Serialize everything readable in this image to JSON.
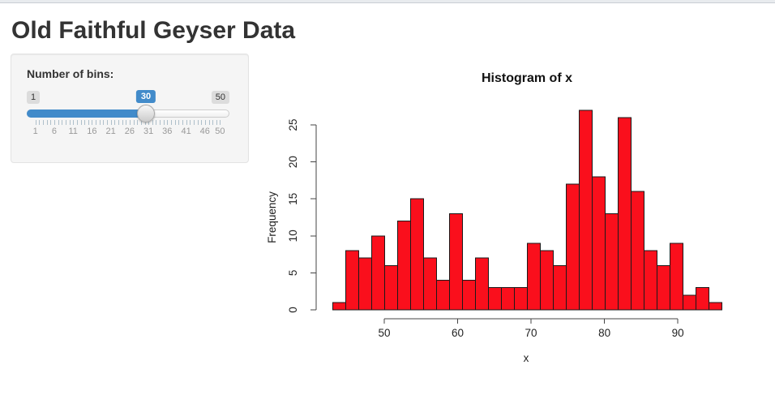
{
  "page": {
    "title": "Old Faithful Geyser Data"
  },
  "sidebar": {
    "bins_label": "Number of bins:",
    "slider": {
      "min": 1,
      "max": 50,
      "value": 30,
      "min_label": "1",
      "max_label": "50",
      "value_label": "30",
      "accent_color": "#428bca",
      "grid": [
        {
          "v": 1,
          "label": "1"
        },
        {
          "v": 6,
          "label": "6"
        },
        {
          "v": 11,
          "label": "11"
        },
        {
          "v": 16,
          "label": "16"
        },
        {
          "v": 21,
          "label": "21"
        },
        {
          "v": 26,
          "label": "26"
        },
        {
          "v": 31,
          "label": "31"
        },
        {
          "v": 36,
          "label": "36"
        },
        {
          "v": 41,
          "label": "41"
        },
        {
          "v": 46,
          "label": "46"
        },
        {
          "v": 50,
          "label": "50"
        }
      ]
    }
  },
  "chart_data": {
    "type": "bar",
    "kind": "histogram",
    "title": "Histogram of x",
    "xlabel": "x",
    "ylabel": "Frequency",
    "bin_start": 43,
    "bin_end": 96,
    "num_bins": 30,
    "counts": [
      1,
      8,
      7,
      10,
      6,
      12,
      15,
      7,
      4,
      13,
      4,
      7,
      3,
      3,
      3,
      9,
      8,
      6,
      17,
      27,
      18,
      13,
      26,
      16,
      8,
      6,
      9,
      2,
      3,
      1
    ],
    "total_observations": 272,
    "x_ticks": [
      50,
      60,
      70,
      80,
      90
    ],
    "y_ticks": [
      0,
      5,
      10,
      15,
      20,
      25
    ],
    "xlim": [
      43,
      96
    ],
    "ylim": [
      0,
      27
    ],
    "bar_fill": "#fa0f1c",
    "bar_border": "#1a1a1a",
    "axis_color": "#444",
    "grid_lines": false,
    "legend": false
  }
}
